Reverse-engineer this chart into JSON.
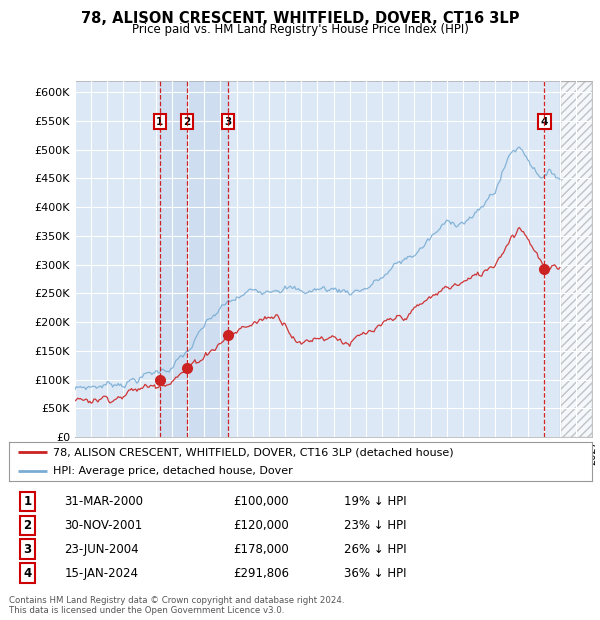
{
  "title": "78, ALISON CRESCENT, WHITFIELD, DOVER, CT16 3LP",
  "subtitle": "Price paid vs. HM Land Registry's House Price Index (HPI)",
  "ylim": [
    0,
    620000
  ],
  "yticks": [
    0,
    50000,
    100000,
    150000,
    200000,
    250000,
    300000,
    350000,
    400000,
    450000,
    500000,
    550000,
    600000
  ],
  "xlim_start": 1995.0,
  "xlim_end": 2027.0,
  "hpi_color": "#7aadd4",
  "price_color": "#cc2222",
  "plot_bg": "#dce8f5",
  "transactions": [
    {
      "num": 1,
      "date_num": 2000.25,
      "price": 100000,
      "label": "31-MAR-2000",
      "price_str": "£100,000",
      "hpi_pct": "19% ↓ HPI"
    },
    {
      "num": 2,
      "date_num": 2001.92,
      "price": 120000,
      "label": "30-NOV-2001",
      "price_str": "£120,000",
      "hpi_pct": "23% ↓ HPI"
    },
    {
      "num": 3,
      "date_num": 2004.48,
      "price": 178000,
      "label": "23-JUN-2004",
      "price_str": "£178,000",
      "hpi_pct": "26% ↓ HPI"
    },
    {
      "num": 4,
      "date_num": 2024.04,
      "price": 291806,
      "label": "15-JAN-2024",
      "price_str": "£291,806",
      "hpi_pct": "36% ↓ HPI"
    }
  ],
  "legend_line1": "78, ALISON CRESCENT, WHITFIELD, DOVER, CT16 3LP (detached house)",
  "legend_line2": "HPI: Average price, detached house, Dover",
  "footer1": "Contains HM Land Registry data © Crown copyright and database right 2024.",
  "footer2": "This data is licensed under the Open Government Licence v3.0.",
  "hatch_start": 2025.0,
  "hatch_end": 2027.0,
  "shade_start": 2000.25,
  "shade_end": 2004.48,
  "shade_color": "#c8d8f0"
}
